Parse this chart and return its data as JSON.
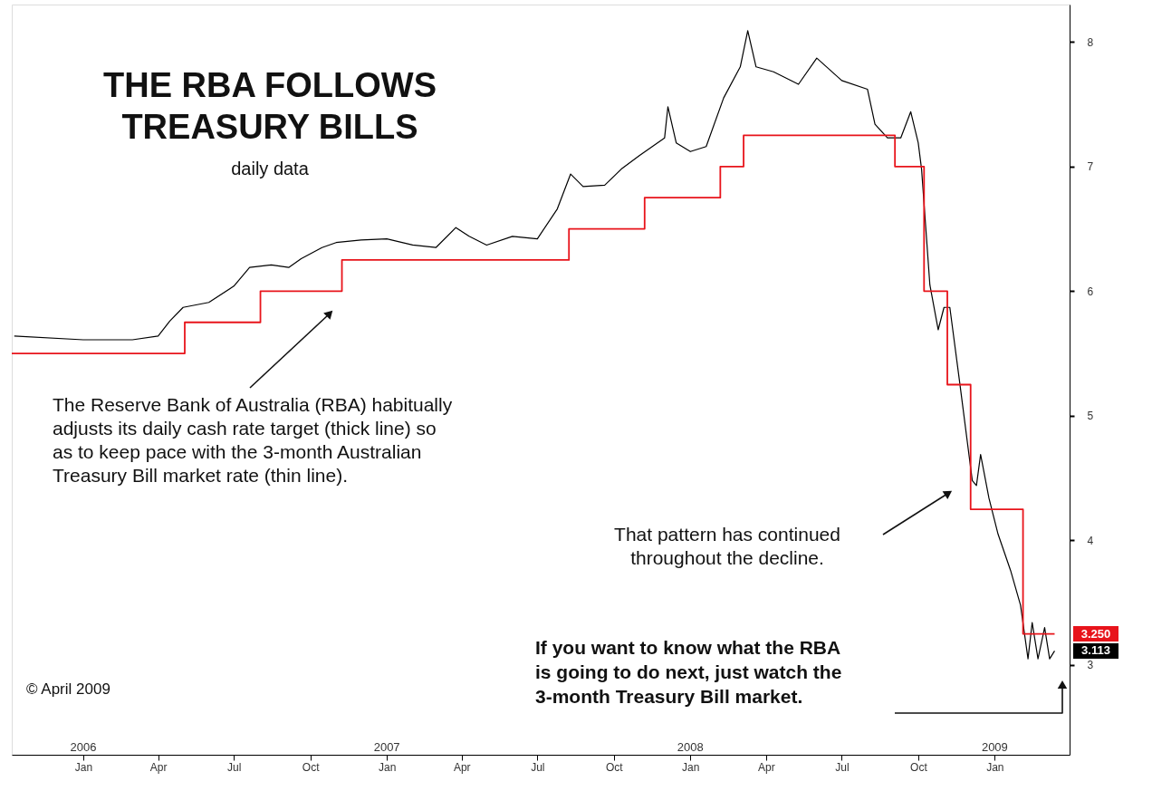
{
  "chart_data": {
    "type": "line",
    "title": "THE RBA FOLLOWS\nTREASURY BILLS",
    "subtitle": "daily data",
    "series": [
      {
        "type": "line",
        "color": "#000000",
        "x": [
          "2005-10-10",
          "2006-01-01",
          "2006-03-01",
          "2006-04-01",
          "2006-04-15",
          "2006-05-01",
          "2006-06-01",
          "2006-07-01",
          "2006-07-20",
          "2006-08-15",
          "2006-09-05",
          "2006-09-20",
          "2006-10-15",
          "2006-11-01",
          "2006-12-01",
          "2007-01-01",
          "2007-02-01",
          "2007-03-01",
          "2007-03-25",
          "2007-04-10",
          "2007-05-01",
          "2007-06-01",
          "2007-07-01",
          "2007-07-25",
          "2007-08-10",
          "2007-08-25",
          "2007-09-20",
          "2007-10-10",
          "2007-11-01",
          "2007-12-01",
          "2007-12-05",
          "2007-12-15",
          "2008-01-01",
          "2008-01-20",
          "2008-02-10",
          "2008-03-01",
          "2008-03-10",
          "2008-03-20",
          "2008-04-10",
          "2008-05-10",
          "2008-06-01",
          "2008-07-01",
          "2008-08-01",
          "2008-08-10",
          "2008-08-25",
          "2008-09-10",
          "2008-09-22",
          "2008-10-01",
          "2008-10-05",
          "2008-10-15",
          "2008-10-25",
          "2008-11-01",
          "2008-11-08",
          "2008-11-20",
          "2008-12-05",
          "2008-12-10",
          "2008-12-15",
          "2008-12-25",
          "2009-01-05",
          "2009-01-20",
          "2009-02-01",
          "2009-02-10",
          "2009-02-15",
          "2009-02-22",
          "2009-03-02",
          "2009-03-08",
          "2009-03-14"
        ],
        "values": [
          5.64,
          5.61,
          5.61,
          5.64,
          5.76,
          5.87,
          5.91,
          6.04,
          6.19,
          6.21,
          6.19,
          6.26,
          6.35,
          6.39,
          6.41,
          6.42,
          6.37,
          6.35,
          6.51,
          6.44,
          6.37,
          6.44,
          6.42,
          6.66,
          6.94,
          6.84,
          6.85,
          6.98,
          7.09,
          7.23,
          7.48,
          7.19,
          7.12,
          7.16,
          7.55,
          7.8,
          8.09,
          7.8,
          7.76,
          7.66,
          7.87,
          7.69,
          7.62,
          7.34,
          7.23,
          7.23,
          7.44,
          7.19,
          6.98,
          6.05,
          5.69,
          5.87,
          5.87,
          5.26,
          4.48,
          4.44,
          4.69,
          4.34,
          4.05,
          3.76,
          3.48,
          3.05,
          3.34,
          3.05,
          3.3,
          3.05,
          3.113
        ]
      },
      {
        "type": "step",
        "color": "#e8141b",
        "x": [
          "2005-10-07",
          "2006-05-03",
          "2006-08-02",
          "2006-11-08",
          "2007-08-08",
          "2007-11-07",
          "2008-02-06",
          "2008-03-05",
          "2008-09-03",
          "2008-10-08",
          "2008-11-05",
          "2008-12-03",
          "2009-02-04",
          "2009-03-14"
        ],
        "values": [
          5.5,
          5.75,
          6.0,
          6.25,
          6.5,
          6.75,
          7.0,
          7.25,
          7.0,
          6.0,
          5.25,
          4.25,
          3.25,
          3.25
        ]
      }
    ],
    "xlim": [
      "2005-10-07",
      "2009-04-01"
    ],
    "xticks": [
      {
        "value": "2006-01-01",
        "label": "Jan"
      },
      {
        "value": "2006-04-01",
        "label": "Apr"
      },
      {
        "value": "2006-07-01",
        "label": "Jul"
      },
      {
        "value": "2006-10-01",
        "label": "Oct"
      },
      {
        "value": "2007-01-01",
        "label": "Jan"
      },
      {
        "value": "2007-04-01",
        "label": "Apr"
      },
      {
        "value": "2007-07-01",
        "label": "Jul"
      },
      {
        "value": "2007-10-01",
        "label": "Oct"
      },
      {
        "value": "2008-01-01",
        "label": "Jan"
      },
      {
        "value": "2008-04-01",
        "label": "Apr"
      },
      {
        "value": "2008-07-01",
        "label": "Jul"
      },
      {
        "value": "2008-10-01",
        "label": "Oct"
      },
      {
        "value": "2009-01-01",
        "label": "Jan"
      }
    ],
    "x2ticks": [
      {
        "value": "2006-01-01",
        "label": "2006"
      },
      {
        "value": "2007-01-01",
        "label": "2007"
      },
      {
        "value": "2008-01-01",
        "label": "2008"
      },
      {
        "value": "2009-01-01",
        "label": "2009"
      }
    ],
    "ylim": [
      2.28,
      8.3
    ],
    "x2lim": [
      "2005-10-07",
      "2009-04-01"
    ],
    "yticks": [
      3,
      4,
      5,
      6,
      7,
      8
    ],
    "grid": false,
    "annotations": [
      "The Reserve Bank of Australia (RBA) habitually\nadjusts its daily cash rate target (thick line) so\nas to keep pace with the 3-month Australian\nTreasury Bill market rate (thin line).",
      "That pattern has continued\nthroughout the decline.",
      "If you want to know what the RBA\nis going to do next, just watch the\n3-month Treasury Bill market.",
      "© April 2009",
      "3.250",
      "3.113"
    ]
  }
}
